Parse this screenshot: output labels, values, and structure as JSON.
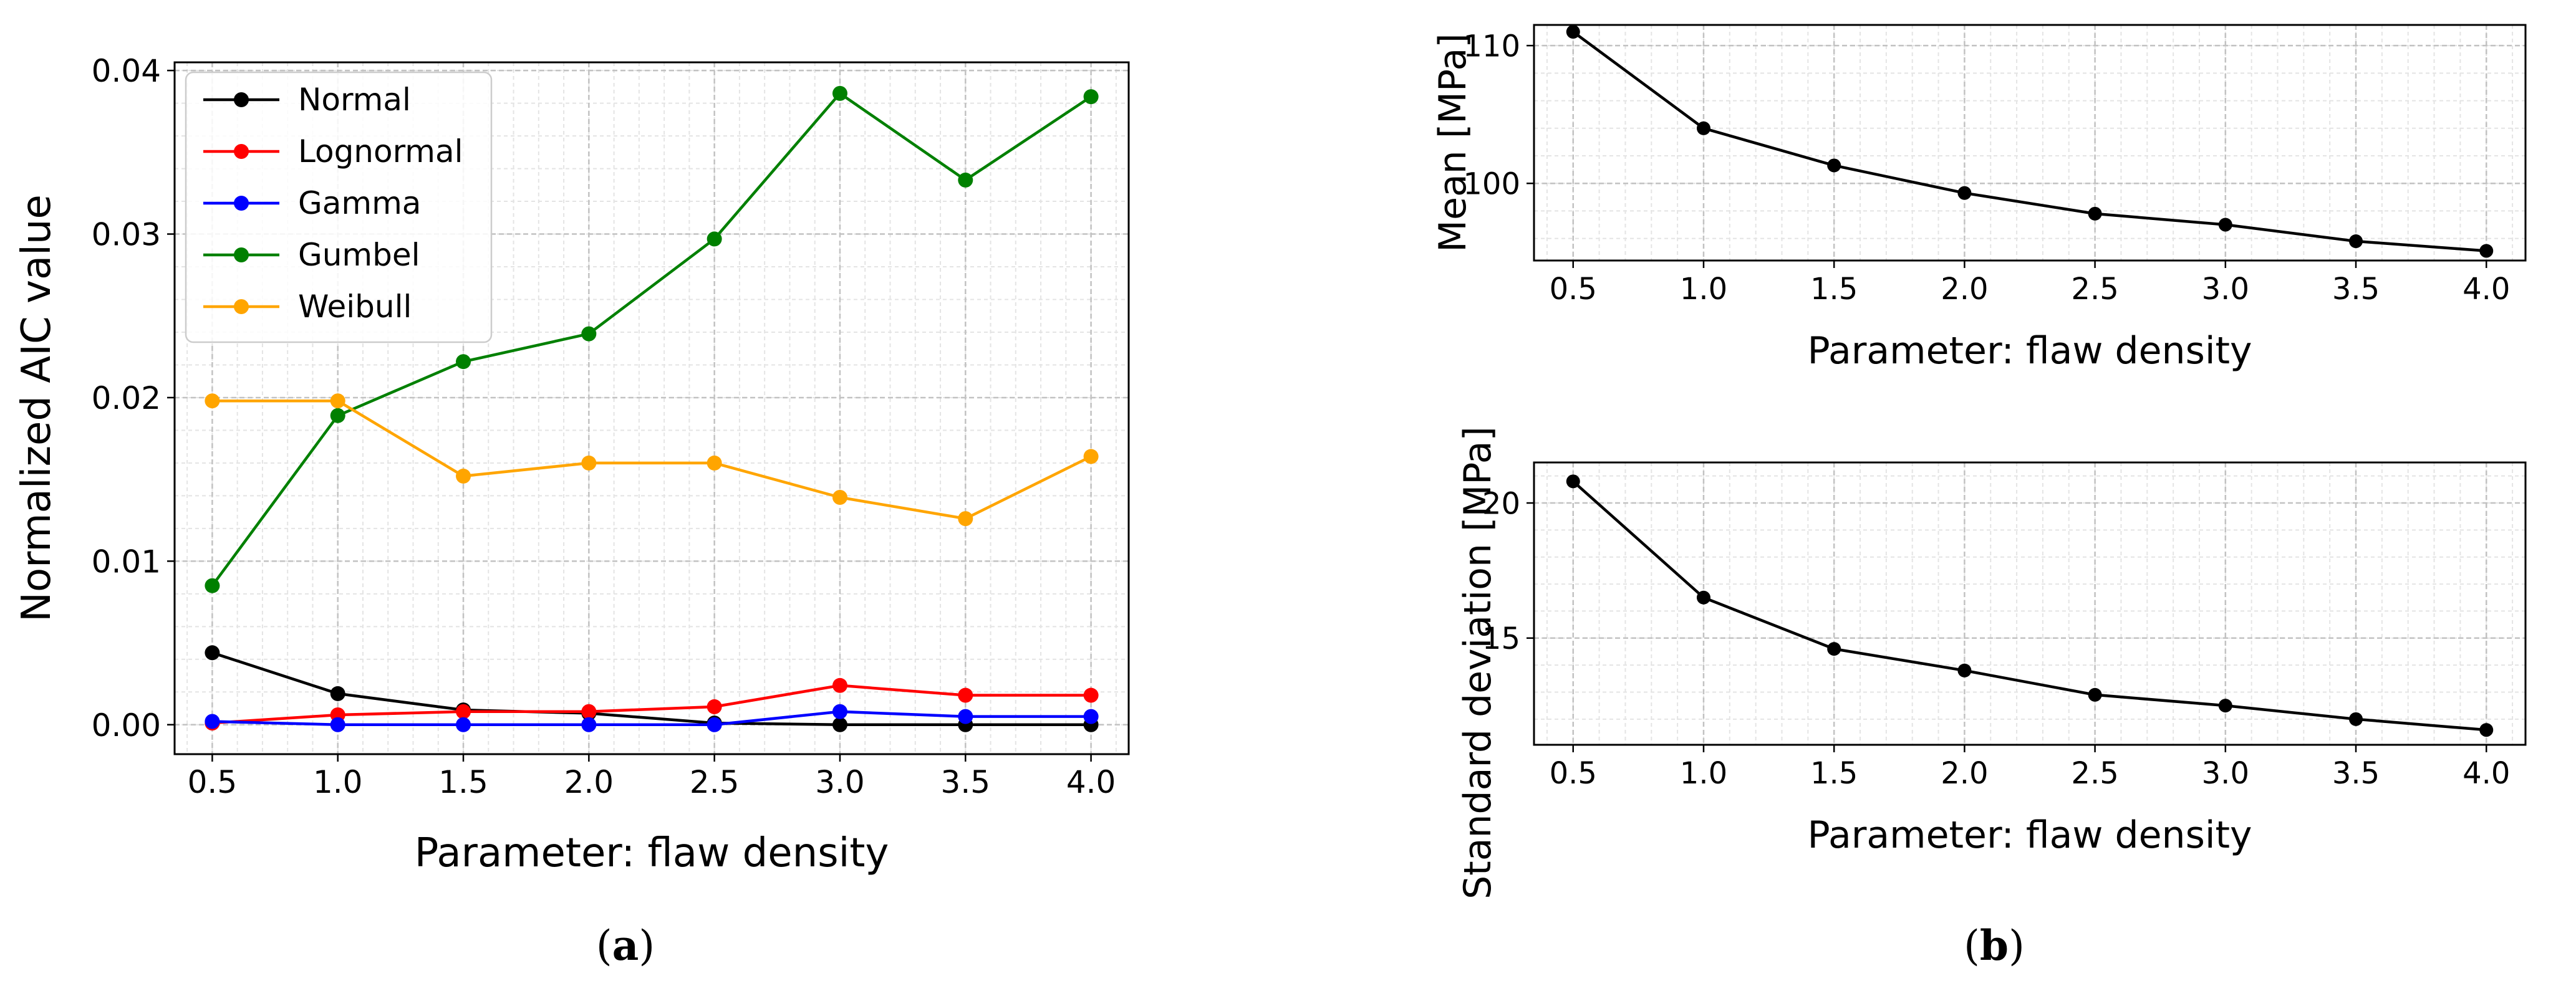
{
  "chart_data": [
    {
      "id": "a",
      "type": "line",
      "caption_label": "a",
      "xlabel": "Parameter: flaw density",
      "ylabel": "Normalized AIC value",
      "xlim": [
        0.35,
        4.15
      ],
      "ylim": [
        -0.0018,
        0.0405
      ],
      "xticks": [
        0.5,
        1.0,
        1.5,
        2.0,
        2.5,
        3.0,
        3.5,
        4.0
      ],
      "xtick_labels": [
        "0.5",
        "1.0",
        "1.5",
        "2.0",
        "2.5",
        "3.0",
        "3.5",
        "4.0"
      ],
      "yticks": [
        0.0,
        0.01,
        0.02,
        0.03,
        0.04
      ],
      "ytick_labels": [
        "0.00",
        "0.01",
        "0.02",
        "0.03",
        "0.04"
      ],
      "grid": true,
      "legend_position": "top-left",
      "x": [
        0.5,
        1.0,
        1.5,
        2.0,
        2.5,
        3.0,
        3.5,
        4.0
      ],
      "series": [
        {
          "name": "Normal",
          "color": "#000000",
          "values": [
            0.0044,
            0.0019,
            0.0009,
            0.0007,
            0.0001,
            0.0,
            0.0,
            0.0
          ]
        },
        {
          "name": "Lognormal",
          "color": "#ff0000",
          "values": [
            0.0001,
            0.0006,
            0.0008,
            0.0008,
            0.0011,
            0.0024,
            0.0018,
            0.0018
          ]
        },
        {
          "name": "Gamma",
          "color": "#0000ff",
          "values": [
            0.0002,
            0.0,
            0.0,
            0.0,
            0.0,
            0.0008,
            0.0005,
            0.0005
          ]
        },
        {
          "name": "Gumbel",
          "color": "#008000",
          "values": [
            0.0085,
            0.0189,
            0.0222,
            0.0239,
            0.0297,
            0.0386,
            0.0333,
            0.0384
          ]
        },
        {
          "name": "Weibull",
          "color": "#ffa500",
          "values": [
            0.0198,
            0.0198,
            0.0152,
            0.016,
            0.016,
            0.0139,
            0.0126,
            0.0164
          ]
        }
      ]
    },
    {
      "id": "b-mean",
      "type": "line",
      "xlabel": "Parameter: flaw density",
      "ylabel": "Mean [MPa]",
      "xlim": [
        0.35,
        4.15
      ],
      "ylim": [
        94.4,
        111.5
      ],
      "xticks": [
        0.5,
        1.0,
        1.5,
        2.0,
        2.5,
        3.0,
        3.5,
        4.0
      ],
      "xtick_labels": [
        "0.5",
        "1.0",
        "1.5",
        "2.0",
        "2.5",
        "3.0",
        "3.5",
        "4.0"
      ],
      "yticks": [
        100,
        110
      ],
      "ytick_labels": [
        "100",
        "110"
      ],
      "grid": true,
      "x": [
        0.5,
        1.0,
        1.5,
        2.0,
        2.5,
        3.0,
        3.5,
        4.0
      ],
      "series": [
        {
          "name": "Mean",
          "color": "#000000",
          "values": [
            111.0,
            104.0,
            101.3,
            99.3,
            97.8,
            97.0,
            95.8,
            95.1
          ]
        }
      ]
    },
    {
      "id": "b-std",
      "type": "line",
      "caption_label": "b",
      "xlabel": "Parameter: flaw density",
      "ylabel": "Standard deviation [MPa]",
      "xlim": [
        0.35,
        4.15
      ],
      "ylim": [
        11.05,
        21.5
      ],
      "xticks": [
        0.5,
        1.0,
        1.5,
        2.0,
        2.5,
        3.0,
        3.5,
        4.0
      ],
      "xtick_labels": [
        "0.5",
        "1.0",
        "1.5",
        "2.0",
        "2.5",
        "3.0",
        "3.5",
        "4.0"
      ],
      "yticks": [
        15,
        20
      ],
      "ytick_labels": [
        "15",
        "20"
      ],
      "grid": true,
      "x": [
        0.5,
        1.0,
        1.5,
        2.0,
        2.5,
        3.0,
        3.5,
        4.0
      ],
      "series": [
        {
          "name": "Standard deviation",
          "color": "#000000",
          "values": [
            20.8,
            16.5,
            14.6,
            13.8,
            12.9,
            12.5,
            12.0,
            11.6
          ]
        }
      ]
    }
  ]
}
